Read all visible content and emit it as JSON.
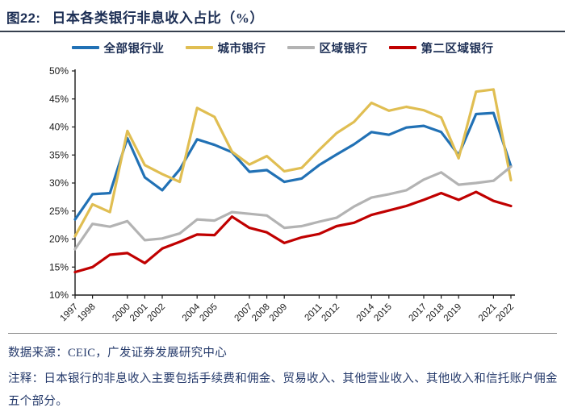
{
  "figure": {
    "tag": "图22:",
    "title": "日本各类银行非息收入占比（%）"
  },
  "chart_data": {
    "type": "line",
    "x": [
      1997,
      1998,
      1999,
      2000,
      2001,
      2002,
      2003,
      2004,
      2005,
      2006,
      2007,
      2008,
      2009,
      2010,
      2011,
      2012,
      2013,
      2014,
      2015,
      2016,
      2017,
      2018,
      2019,
      2020,
      2021,
      2022
    ],
    "x_tick_labels": [
      "1997",
      "1998",
      "2000",
      "2001",
      "2002",
      "2004",
      "2005",
      "2007",
      "2008",
      "2009",
      "2011",
      "2012",
      "2014",
      "2015",
      "2017",
      "2018",
      "2019",
      "2021",
      "2022"
    ],
    "y_ticks": [
      10,
      15,
      20,
      25,
      30,
      35,
      40,
      45,
      50
    ],
    "y_tick_suffix": "%",
    "ylim": [
      10,
      50
    ],
    "grid": false,
    "legend_position": "top",
    "axis_color": "#1a1a1a",
    "series": [
      {
        "key": "all-banks",
        "name": "全部银行业",
        "color": "#2171B5",
        "values": [
          23.5,
          28.0,
          28.2,
          38.0,
          31.0,
          28.7,
          32.4,
          37.8,
          36.8,
          35.5,
          32.0,
          32.3,
          30.2,
          30.8,
          33.2,
          35.1,
          36.9,
          39.1,
          38.6,
          39.9,
          40.2,
          39.1,
          35.0,
          42.3,
          42.5,
          33.0
        ]
      },
      {
        "key": "city-banks",
        "name": "城市银行",
        "color": "#E0BE52",
        "values": [
          20.5,
          26.2,
          24.8,
          39.3,
          33.2,
          31.6,
          30.2,
          43.4,
          41.8,
          35.6,
          33.3,
          34.8,
          32.1,
          32.7,
          35.9,
          38.9,
          40.9,
          44.3,
          42.9,
          43.6,
          43.0,
          41.7,
          34.4,
          46.3,
          46.7,
          30.5
        ]
      },
      {
        "key": "regional-banks",
        "name": "区域银行",
        "color": "#B3B3B3",
        "values": [
          18.2,
          22.7,
          22.2,
          23.2,
          19.8,
          20.1,
          21.0,
          23.5,
          23.3,
          24.8,
          24.5,
          24.2,
          22.0,
          22.3,
          23.1,
          23.8,
          25.8,
          27.4,
          28.0,
          28.7,
          30.6,
          31.9,
          29.7,
          30.0,
          30.4,
          32.9
        ]
      },
      {
        "key": "second-regional-banks",
        "name": "第二区域银行",
        "color": "#C00000",
        "values": [
          14.1,
          15.0,
          17.2,
          17.5,
          15.7,
          18.3,
          19.5,
          20.8,
          20.7,
          24.0,
          22.0,
          21.2,
          19.3,
          20.3,
          20.9,
          22.3,
          22.9,
          24.3,
          25.1,
          25.9,
          27.0,
          28.2,
          27.0,
          28.4,
          26.8,
          25.9
        ]
      }
    ]
  },
  "footer": {
    "source": "数据来源：CEIC，广发证券发展研究中心",
    "note": "注释：日本银行的非息收入主要包括手续费和佣金、贸易收入、其他营业收入、其他收入和信托账户佣金五个部分。"
  }
}
